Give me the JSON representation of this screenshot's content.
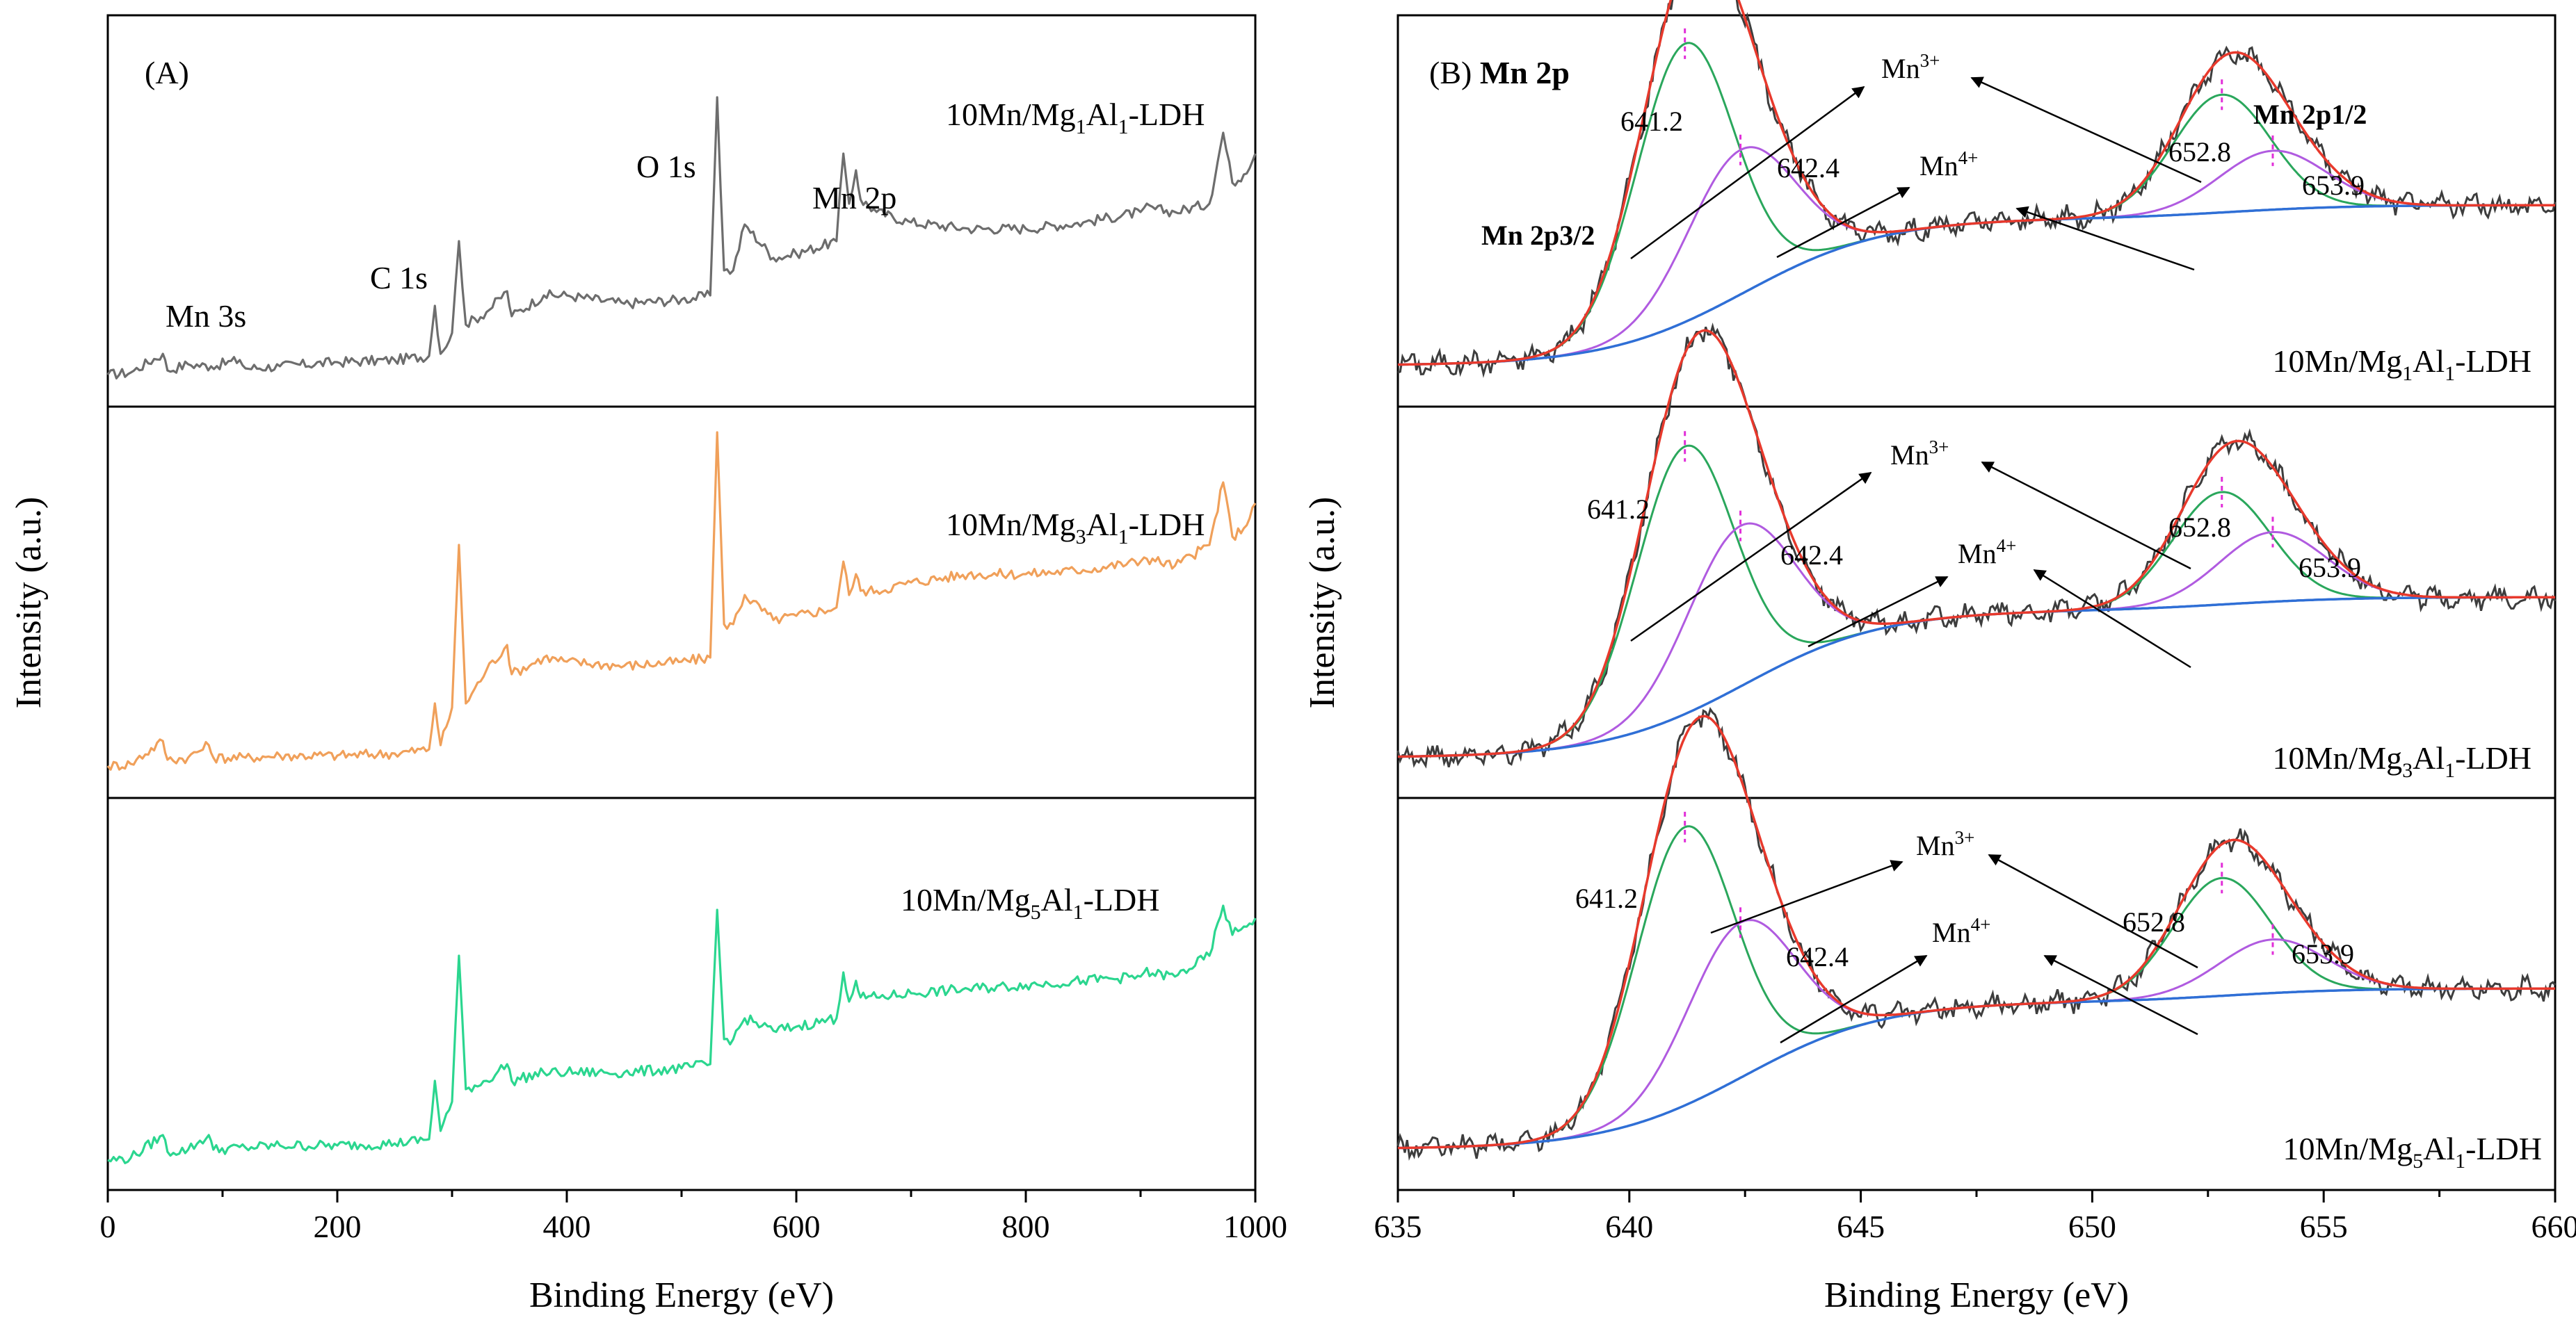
{
  "colors": {
    "sample1": "#6d6d6d",
    "sample3": "#f0a05a",
    "sample5": "#2bd68f",
    "raw": "#3d3d3d",
    "envelope": "#e8392c",
    "mn3": "#2aa75c",
    "mn4": "#b05be0",
    "background": "#2f6fd6",
    "marker": "#e12ed8"
  },
  "chart_data": [
    {
      "type": "line",
      "panel_label": "(A)",
      "xlabel": "Binding Energy (eV)",
      "ylabel": "Intensity (a.u.)",
      "xlim": [
        0,
        1000
      ],
      "xticks": [
        "0",
        "200",
        "400",
        "600",
        "800",
        "1000"
      ],
      "peak_labels": [
        {
          "text": "Mn 3s",
          "x": 50
        },
        {
          "text": "C 1s",
          "x": 285
        },
        {
          "text": "O 1s",
          "x": 531
        },
        {
          "text": "Mn 2p",
          "x": 642
        }
      ],
      "series": [
        {
          "name": "10Mn/Mg1Al1-LDH",
          "label_parts": [
            "10Mn/Mg",
            "1",
            "Al",
            "1",
            "-LDH"
          ],
          "x": [
            0,
            20,
            48,
            52,
            70,
            90,
            115,
            120,
            150,
            200,
            250,
            280,
            285,
            290,
            300,
            306,
            312,
            330,
            348,
            352,
            380,
            400,
            450,
            500,
            525,
            531,
            537,
            545,
            555,
            580,
            600,
            635,
            641,
            646,
            652,
            656,
            670,
            700,
            750,
            800,
            850,
            900,
            903,
            930,
            960,
            972,
            980,
            990,
            1000
          ],
          "y": [
            2,
            3,
            12,
            4,
            7,
            6,
            9,
            5,
            6,
            8,
            9,
            11,
            35,
            12,
            22,
            66,
            26,
            32,
            42,
            30,
            40,
            40,
            36,
            38,
            40,
            135,
            52,
            52,
            74,
            58,
            60,
            66,
            108,
            84,
            100,
            86,
            80,
            75,
            72,
            72,
            75,
            80,
            82,
            80,
            84,
            118,
            94,
            98,
            108
          ]
        },
        {
          "name": "10Mn/Mg3Al1-LDH",
          "label_parts": [
            "10Mn/Mg",
            "3",
            "Al",
            "1",
            "-LDH"
          ],
          "x": [
            0,
            20,
            48,
            52,
            70,
            88,
            92,
            120,
            150,
            200,
            250,
            280,
            285,
            290,
            300,
            306,
            312,
            330,
            348,
            352,
            380,
            400,
            450,
            500,
            525,
            531,
            537,
            545,
            555,
            580,
            600,
            635,
            641,
            646,
            652,
            656,
            670,
            700,
            750,
            800,
            850,
            900,
            903,
            930,
            960,
            972,
            980,
            990,
            1000
          ],
          "y": [
            2,
            3,
            14,
            5,
            6,
            12,
            6,
            6,
            7,
            7,
            8,
            10,
            32,
            12,
            30,
            108,
            32,
            48,
            60,
            46,
            54,
            52,
            50,
            52,
            54,
            162,
            70,
            70,
            84,
            72,
            74,
            78,
            100,
            84,
            94,
            86,
            86,
            90,
            94,
            94,
            96,
            100,
            102,
            98,
            108,
            138,
            112,
            116,
            128
          ]
        },
        {
          "name": "10Mn/Mg5Al1-LDH",
          "label_parts": [
            "10Mn/Mg",
            "5",
            "Al",
            "1",
            "-LDH"
          ],
          "x": [
            0,
            20,
            48,
            52,
            70,
            88,
            92,
            120,
            150,
            200,
            250,
            280,
            285,
            290,
            300,
            306,
            312,
            330,
            348,
            352,
            380,
            400,
            450,
            500,
            525,
            531,
            537,
            545,
            555,
            580,
            600,
            635,
            641,
            646,
            652,
            656,
            670,
            700,
            750,
            800,
            850,
            900,
            903,
            930,
            960,
            972,
            980,
            990,
            1000
          ],
          "y": [
            2,
            3,
            14,
            6,
            7,
            14,
            7,
            8,
            9,
            9,
            10,
            12,
            40,
            16,
            30,
            100,
            36,
            40,
            48,
            40,
            44,
            44,
            44,
            46,
            48,
            122,
            60,
            60,
            70,
            64,
            66,
            70,
            92,
            78,
            88,
            80,
            80,
            82,
            84,
            86,
            88,
            90,
            92,
            90,
            100,
            124,
            110,
            114,
            118
          ]
        }
      ]
    },
    {
      "type": "line",
      "panel_label": "(B)",
      "title": "Mn 2p",
      "xlabel": "Binding Energy (eV)",
      "ylabel": "Intensity (a.u.)",
      "xlim": [
        635,
        660
      ],
      "xticks": [
        "635",
        "640",
        "645",
        "650",
        "655",
        "660"
      ],
      "component_labels": {
        "mn3": {
          "base": "Mn",
          "sup": "3+"
        },
        "mn4": {
          "base": "Mn",
          "sup": "4+"
        },
        "p32": "Mn 2p3/2",
        "p12": "Mn 2p1/2"
      },
      "peak_positions": {
        "mn3_2p32": 641.2,
        "mn4_2p32": 642.4,
        "mn3_2p12": 652.8,
        "mn4_2p12": 653.9
      },
      "peak_position_labels": [
        "641.2",
        "642.4",
        "652.8",
        "653.9"
      ],
      "series": [
        {
          "name": "10Mn/Mg1Al1-LDH",
          "label_parts": [
            "10Mn/Mg",
            "1",
            "Al",
            "1",
            "-LDH"
          ],
          "background": {
            "low": 3,
            "high": 58,
            "center": 642.5,
            "width": 1.5
          },
          "peaks": [
            {
              "component": "Mn3+ 2p3/2",
              "center": 641.2,
              "height": 104,
              "sigma": 1.05
            },
            {
              "component": "Mn4+ 2p3/2",
              "center": 642.4,
              "height": 54,
              "sigma": 1.15
            },
            {
              "component": "Mn3+ 2p1/2",
              "center": 652.8,
              "height": 44,
              "sigma": 1.05
            },
            {
              "component": "Mn4+ 2p1/2",
              "center": 653.9,
              "height": 22,
              "sigma": 1.15
            }
          ]
        },
        {
          "name": "10Mn/Mg3Al1-LDH",
          "label_parts": [
            "10Mn/Mg",
            "3",
            "Al",
            "1",
            "-LDH"
          ],
          "background": {
            "low": 3,
            "high": 58,
            "center": 642.5,
            "width": 1.5
          },
          "peaks": [
            {
              "component": "Mn3+ 2p3/2",
              "center": 641.2,
              "height": 100,
              "sigma": 1.05
            },
            {
              "component": "Mn4+ 2p3/2",
              "center": 642.4,
              "height": 60,
              "sigma": 1.15
            },
            {
              "component": "Mn3+ 2p1/2",
              "center": 652.8,
              "height": 42,
              "sigma": 1.05
            },
            {
              "component": "Mn4+ 2p1/2",
              "center": 653.9,
              "height": 26,
              "sigma": 1.15
            }
          ]
        },
        {
          "name": "10Mn/Mg5Al1-LDH",
          "label_parts": [
            "10Mn/Mg",
            "5",
            "Al",
            "1",
            "-LDH"
          ],
          "background": {
            "low": 3,
            "high": 58,
            "center": 642.5,
            "width": 1.5
          },
          "peaks": [
            {
              "component": "Mn3+ 2p3/2",
              "center": 641.2,
              "height": 104,
              "sigma": 1.05
            },
            {
              "component": "Mn4+ 2p3/2",
              "center": 642.4,
              "height": 58,
              "sigma": 1.15
            },
            {
              "component": "Mn3+ 2p1/2",
              "center": 652.8,
              "height": 44,
              "sigma": 1.05
            },
            {
              "component": "Mn4+ 2p1/2",
              "center": 653.9,
              "height": 20,
              "sigma": 1.15
            }
          ]
        }
      ]
    }
  ]
}
